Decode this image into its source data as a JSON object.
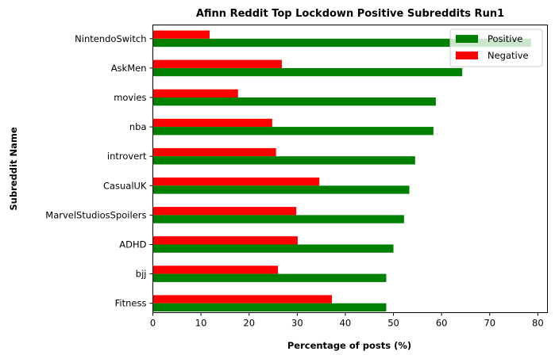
{
  "chart_data": {
    "type": "bar",
    "orientation": "horizontal",
    "title": "Afinn Reddit Top Lockdown Positive Subreddits Run1",
    "xlabel": "Percentage of posts (%)",
    "ylabel": "Subreddit Name",
    "xlim": [
      0,
      82
    ],
    "xticks": [
      0,
      10,
      20,
      30,
      40,
      50,
      60,
      70,
      80
    ],
    "categories": [
      "NintendoSwitch",
      "AskMen",
      "movies",
      "nba",
      "introvert",
      "CasualUK",
      "MarvelStudiosSpoilers",
      "ADHD",
      "bjj",
      "Fitness"
    ],
    "series": [
      {
        "name": "Positive",
        "color": "#008000",
        "values": [
          78.6,
          64.3,
          58.8,
          58.3,
          54.5,
          53.3,
          52.2,
          50.0,
          48.5,
          48.5
        ]
      },
      {
        "name": "Negative",
        "color": "#ff0000",
        "values": [
          11.8,
          26.8,
          17.7,
          24.8,
          25.6,
          34.6,
          29.8,
          30.1,
          26.0,
          37.2
        ]
      }
    ],
    "grid": false,
    "legend_position": "top-right"
  }
}
